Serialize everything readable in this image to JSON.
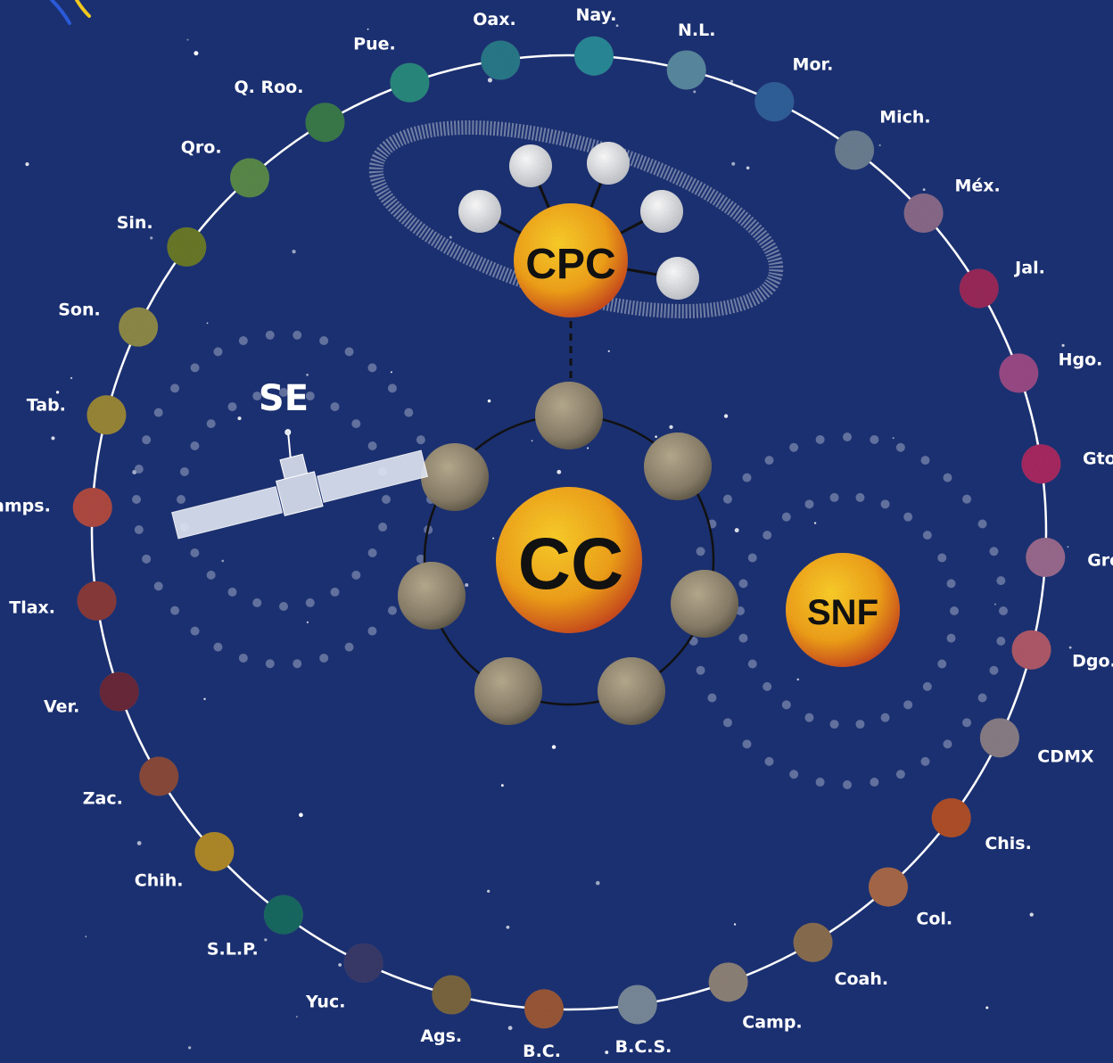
{
  "states": [
    {
      "name": "Nay.",
      "color": "#2a8a98"
    },
    {
      "name": "N.L.",
      "color": "#5a8aa0"
    },
    {
      "name": "Mor.",
      "color": "#30609a"
    },
    {
      "name": "Mich.",
      "color": "#6b7f92"
    },
    {
      "name": "Méx.",
      "color": "#8a6a8a"
    },
    {
      "name": "Jal.",
      "color": "#9a2a5a"
    },
    {
      "name": "Hgo.",
      "color": "#9a4a86"
    },
    {
      "name": "Gto.",
      "color": "#a82a62"
    },
    {
      "name": "Gro.",
      "color": "#9a6a8e"
    },
    {
      "name": "Dgo.",
      "color": "#b05a6a"
    },
    {
      "name": "CDMX",
      "color": "#8a7e86"
    },
    {
      "name": "Chis.",
      "color": "#b0502a"
    },
    {
      "name": "Col.",
      "color": "#a86848"
    },
    {
      "name": "Coah.",
      "color": "#8a6e50"
    },
    {
      "name": "Camp.",
      "color": "#8e8278"
    },
    {
      "name": "B.C.S.",
      "color": "#7a8a9a"
    },
    {
      "name": "B.C.",
      "color": "#9a5838"
    },
    {
      "name": "Ags.",
      "color": "#7a6640"
    },
    {
      "name": "Yuc.",
      "color": "#3a3a6a"
    },
    {
      "name": "S.L.P.",
      "color": "#1a6a62"
    },
    {
      "name": "Chih.",
      "color": "#b08a2a"
    },
    {
      "name": "Zac.",
      "color": "#8a4a3a"
    },
    {
      "name": "Ver.",
      "color": "#6a2a3a"
    },
    {
      "name": "Tlax.",
      "color": "#8a3a3a"
    },
    {
      "name": "Tamps.",
      "color": "#b04a42"
    },
    {
      "name": "Tab.",
      "color": "#9a8838"
    },
    {
      "name": "Son.",
      "color": "#8e8a48"
    },
    {
      "name": "Sin.",
      "color": "#6a7a2a"
    },
    {
      "name": "Qro.",
      "color": "#5a8a4a"
    },
    {
      "name": "Q. Roo.",
      "color": "#3a7a4a"
    },
    {
      "name": "Pue.",
      "color": "#2a8a7e"
    },
    {
      "name": "Oax.",
      "color": "#2a7a8a"
    }
  ],
  "bodies": {
    "cc_label": "CC",
    "cpc_label": "CPC",
    "snf_label": "SNF",
    "se_label": "SE"
  },
  "colors": {
    "background": "#1b3070",
    "sun_core": "#f6c21a",
    "sun_edge": "#c9421c",
    "moon_gray": "#8a7f6a",
    "satellite_white": "#dfe5f2"
  }
}
